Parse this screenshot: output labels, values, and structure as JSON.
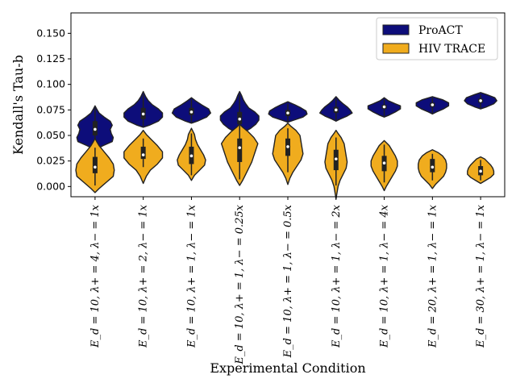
{
  "chart_data": {
    "type": "violin",
    "xlabel": "Experimental Condition",
    "ylabel": "Kendall's Tau-b",
    "ylim": [
      -0.01,
      0.17
    ],
    "yticks": [
      0.0,
      0.025,
      0.05,
      0.075,
      0.1,
      0.125,
      0.15
    ],
    "ytick_labels": [
      "0.000",
      "0.025",
      "0.050",
      "0.075",
      "0.100",
      "0.125",
      "0.150"
    ],
    "categories": [
      "E_d = 10, λ+ = 4, λ− = 1x",
      "E_d = 10, λ+ = 2, λ− = 1x",
      "E_d = 10, λ+ = 1, λ− = 1x",
      "E_d = 10, λ+ = 1, λ− = 0.25x",
      "E_d = 10, λ+ = 1, λ− = 0.5x",
      "E_d = 10, λ+ = 1, λ− = 2x",
      "E_d = 10, λ+ = 1, λ− = 4x",
      "E_d = 20, λ+ = 1, λ− = 1x",
      "E_d = 30, λ+ = 1, λ− = 1x"
    ],
    "legend": {
      "position": "top-right",
      "entries": [
        "ProACT",
        "HIV TRACE"
      ]
    },
    "series": [
      {
        "name": "ProACT",
        "color": "#0d0d7a",
        "violins": [
          {
            "ymin": 0.036,
            "ymax": 0.079,
            "q1": 0.05,
            "median": 0.056,
            "q3": 0.064,
            "wlo": 0.04,
            "whi": 0.077,
            "prof": [
              [
                0.036,
                0
              ],
              [
                0.04,
                0.4
              ],
              [
                0.044,
                0.85
              ],
              [
                0.048,
                0.9
              ],
              [
                0.052,
                0.8
              ],
              [
                0.056,
                0.75
              ],
              [
                0.06,
                0.85
              ],
              [
                0.064,
                0.75
              ],
              [
                0.068,
                0.45
              ],
              [
                0.072,
                0.2
              ],
              [
                0.076,
                0.08
              ],
              [
                0.079,
                0
              ]
            ]
          },
          {
            "ymin": 0.058,
            "ymax": 0.093,
            "q1": 0.066,
            "median": 0.071,
            "q3": 0.077,
            "wlo": 0.059,
            "whi": 0.09,
            "prof": [
              [
                0.058,
                0
              ],
              [
                0.06,
                0.3
              ],
              [
                0.064,
                0.75
              ],
              [
                0.068,
                0.95
              ],
              [
                0.072,
                0.95
              ],
              [
                0.076,
                0.75
              ],
              [
                0.08,
                0.45
              ],
              [
                0.084,
                0.25
              ],
              [
                0.088,
                0.12
              ],
              [
                0.093,
                0
              ]
            ]
          },
          {
            "ymin": 0.062,
            "ymax": 0.087,
            "q1": 0.07,
            "median": 0.073,
            "q3": 0.077,
            "wlo": 0.063,
            "whi": 0.085,
            "prof": [
              [
                0.062,
                0
              ],
              [
                0.064,
                0.3
              ],
              [
                0.068,
                0.75
              ],
              [
                0.072,
                0.95
              ],
              [
                0.076,
                0.85
              ],
              [
                0.08,
                0.5
              ],
              [
                0.084,
                0.2
              ],
              [
                0.087,
                0
              ]
            ]
          },
          {
            "ymin": 0.05,
            "ymax": 0.093,
            "q1": 0.061,
            "median": 0.066,
            "q3": 0.073,
            "wlo": 0.051,
            "whi": 0.09,
            "prof": [
              [
                0.05,
                0
              ],
              [
                0.053,
                0.2
              ],
              [
                0.057,
                0.55
              ],
              [
                0.061,
                0.8
              ],
              [
                0.065,
                0.95
              ],
              [
                0.069,
                0.95
              ],
              [
                0.073,
                0.75
              ],
              [
                0.077,
                0.45
              ],
              [
                0.081,
                0.3
              ],
              [
                0.085,
                0.18
              ],
              [
                0.089,
                0.1
              ],
              [
                0.093,
                0
              ]
            ]
          },
          {
            "ymin": 0.063,
            "ymax": 0.083,
            "q1": 0.069,
            "median": 0.072,
            "q3": 0.075,
            "wlo": 0.064,
            "whi": 0.081,
            "prof": [
              [
                0.063,
                0
              ],
              [
                0.065,
                0.3
              ],
              [
                0.068,
                0.75
              ],
              [
                0.071,
                0.95
              ],
              [
                0.074,
                0.9
              ],
              [
                0.077,
                0.65
              ],
              [
                0.08,
                0.35
              ],
              [
                0.083,
                0
              ]
            ]
          },
          {
            "ymin": 0.064,
            "ymax": 0.088,
            "q1": 0.072,
            "median": 0.075,
            "q3": 0.078,
            "wlo": 0.065,
            "whi": 0.086,
            "prof": [
              [
                0.064,
                0
              ],
              [
                0.066,
                0.2
              ],
              [
                0.069,
                0.55
              ],
              [
                0.072,
                0.8
              ],
              [
                0.075,
                0.7
              ],
              [
                0.078,
                0.55
              ],
              [
                0.081,
                0.35
              ],
              [
                0.084,
                0.18
              ],
              [
                0.088,
                0
              ]
            ]
          },
          {
            "ymin": 0.068,
            "ymax": 0.087,
            "q1": 0.076,
            "median": 0.078,
            "q3": 0.08,
            "wlo": 0.069,
            "whi": 0.085,
            "prof": [
              [
                0.068,
                0
              ],
              [
                0.07,
                0.25
              ],
              [
                0.073,
                0.55
              ],
              [
                0.076,
                0.8
              ],
              [
                0.079,
                0.8
              ],
              [
                0.081,
                0.55
              ],
              [
                0.084,
                0.2
              ],
              [
                0.087,
                0
              ]
            ]
          },
          {
            "ymin": 0.071,
            "ymax": 0.088,
            "q1": 0.078,
            "median": 0.08,
            "q3": 0.082,
            "wlo": 0.072,
            "whi": 0.087,
            "prof": [
              [
                0.071,
                0
              ],
              [
                0.073,
                0.2
              ],
              [
                0.076,
                0.55
              ],
              [
                0.079,
                0.8
              ],
              [
                0.082,
                0.8
              ],
              [
                0.085,
                0.5
              ],
              [
                0.088,
                0
              ]
            ]
          },
          {
            "ymin": 0.076,
            "ymax": 0.092,
            "q1": 0.082,
            "median": 0.084,
            "q3": 0.086,
            "wlo": 0.077,
            "whi": 0.09,
            "prof": [
              [
                0.076,
                0
              ],
              [
                0.078,
                0.3
              ],
              [
                0.081,
                0.65
              ],
              [
                0.084,
                0.8
              ],
              [
                0.087,
                0.7
              ],
              [
                0.09,
                0.3
              ],
              [
                0.092,
                0
              ]
            ]
          }
        ]
      },
      {
        "name": "HIV TRACE",
        "color": "#f0ac1e",
        "violins": [
          {
            "ymin": -0.006,
            "ymax": 0.047,
            "q1": 0.013,
            "median": 0.019,
            "q3": 0.029,
            "wlo": 0.001,
            "whi": 0.038,
            "prof": [
              [
                -0.006,
                0
              ],
              [
                -0.002,
                0.2
              ],
              [
                0.004,
                0.55
              ],
              [
                0.01,
                0.9
              ],
              [
                0.016,
                0.95
              ],
              [
                0.022,
                0.9
              ],
              [
                0.028,
                0.7
              ],
              [
                0.034,
                0.45
              ],
              [
                0.04,
                0.2
              ],
              [
                0.044,
                0.08
              ],
              [
                0.047,
                0
              ]
            ]
          },
          {
            "ymin": 0.003,
            "ymax": 0.055,
            "q1": 0.027,
            "median": 0.031,
            "q3": 0.039,
            "wlo": 0.019,
            "whi": 0.047,
            "prof": [
              [
                0.003,
                0
              ],
              [
                0.01,
                0.15
              ],
              [
                0.016,
                0.35
              ],
              [
                0.022,
                0.7
              ],
              [
                0.028,
                0.95
              ],
              [
                0.034,
                0.95
              ],
              [
                0.04,
                0.7
              ],
              [
                0.046,
                0.4
              ],
              [
                0.051,
                0.15
              ],
              [
                0.055,
                0
              ]
            ]
          },
          {
            "ymin": 0.006,
            "ymax": 0.057,
            "q1": 0.022,
            "median": 0.03,
            "q3": 0.039,
            "wlo": 0.011,
            "whi": 0.052,
            "prof": [
              [
                0.006,
                0
              ],
              [
                0.011,
                0.15
              ],
              [
                0.016,
                0.4
              ],
              [
                0.021,
                0.65
              ],
              [
                0.026,
                0.7
              ],
              [
                0.031,
                0.6
              ],
              [
                0.036,
                0.45
              ],
              [
                0.041,
                0.3
              ],
              [
                0.046,
                0.2
              ],
              [
                0.051,
                0.15
              ],
              [
                0.057,
                0
              ]
            ]
          },
          {
            "ymin": 0.001,
            "ymax": 0.061,
            "q1": 0.024,
            "median": 0.038,
            "q3": 0.047,
            "wlo": 0.007,
            "whi": 0.06,
            "prof": [
              [
                0.001,
                0
              ],
              [
                0.006,
                0.15
              ],
              [
                0.012,
                0.3
              ],
              [
                0.018,
                0.45
              ],
              [
                0.024,
                0.6
              ],
              [
                0.03,
                0.7
              ],
              [
                0.036,
                0.8
              ],
              [
                0.042,
                0.9
              ],
              [
                0.048,
                0.7
              ],
              [
                0.054,
                0.4
              ],
              [
                0.058,
                0.15
              ],
              [
                0.061,
                0
              ]
            ]
          },
          {
            "ymin": 0.002,
            "ymax": 0.062,
            "q1": 0.03,
            "median": 0.039,
            "q3": 0.047,
            "wlo": 0.014,
            "whi": 0.057,
            "prof": [
              [
                0.002,
                0
              ],
              [
                0.008,
                0.1
              ],
              [
                0.014,
                0.25
              ],
              [
                0.02,
                0.45
              ],
              [
                0.026,
                0.65
              ],
              [
                0.032,
                0.75
              ],
              [
                0.038,
                0.7
              ],
              [
                0.044,
                0.65
              ],
              [
                0.05,
                0.6
              ],
              [
                0.055,
                0.4
              ],
              [
                0.059,
                0.15
              ],
              [
                0.062,
                0
              ]
            ]
          },
          {
            "ymin": -0.012,
            "ymax": 0.055,
            "q1": 0.016,
            "median": 0.027,
            "q3": 0.036,
            "wlo": 0.001,
            "whi": 0.048,
            "prof": [
              [
                -0.012,
                0
              ],
              [
                -0.006,
                0.05
              ],
              [
                0.0,
                0.1
              ],
              [
                0.006,
                0.2
              ],
              [
                0.012,
                0.35
              ],
              [
                0.018,
                0.5
              ],
              [
                0.024,
                0.55
              ],
              [
                0.03,
                0.5
              ],
              [
                0.036,
                0.45
              ],
              [
                0.042,
                0.4
              ],
              [
                0.048,
                0.25
              ],
              [
                0.052,
                0.1
              ],
              [
                0.055,
                0
              ]
            ]
          },
          {
            "ymin": -0.004,
            "ymax": 0.045,
            "q1": 0.015,
            "median": 0.023,
            "q3": 0.03,
            "wlo": 0.004,
            "whi": 0.041,
            "prof": [
              [
                -0.004,
                0
              ],
              [
                0.0,
                0.1
              ],
              [
                0.005,
                0.25
              ],
              [
                0.01,
                0.4
              ],
              [
                0.015,
                0.55
              ],
              [
                0.02,
                0.65
              ],
              [
                0.025,
                0.65
              ],
              [
                0.03,
                0.55
              ],
              [
                0.035,
                0.4
              ],
              [
                0.04,
                0.25
              ],
              [
                0.045,
                0
              ]
            ]
          },
          {
            "ymin": -0.002,
            "ymax": 0.036,
            "q1": 0.014,
            "median": 0.019,
            "q3": 0.027,
            "wlo": 0.006,
            "whi": 0.032,
            "prof": [
              [
                -0.002,
                0
              ],
              [
                0.002,
                0.15
              ],
              [
                0.006,
                0.35
              ],
              [
                0.01,
                0.55
              ],
              [
                0.014,
                0.65
              ],
              [
                0.018,
                0.7
              ],
              [
                0.022,
                0.7
              ],
              [
                0.026,
                0.65
              ],
              [
                0.03,
                0.5
              ],
              [
                0.033,
                0.3
              ],
              [
                0.036,
                0
              ]
            ]
          },
          {
            "ymin": 0.003,
            "ymax": 0.029,
            "q1": 0.011,
            "median": 0.015,
            "q3": 0.02,
            "wlo": 0.006,
            "whi": 0.026,
            "prof": [
              [
                0.003,
                0
              ],
              [
                0.006,
                0.25
              ],
              [
                0.009,
                0.5
              ],
              [
                0.012,
                0.65
              ],
              [
                0.015,
                0.65
              ],
              [
                0.018,
                0.6
              ],
              [
                0.021,
                0.5
              ],
              [
                0.024,
                0.35
              ],
              [
                0.027,
                0.2
              ],
              [
                0.029,
                0
              ]
            ]
          }
        ]
      }
    ]
  }
}
